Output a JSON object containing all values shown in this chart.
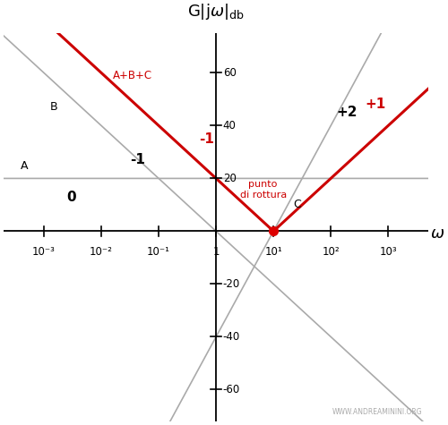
{
  "title": "G|jω|_db",
  "xlabel": "ω",
  "background_color": "#ffffff",
  "x_ticks": [
    -3,
    -2,
    -1,
    0,
    1,
    2,
    3
  ],
  "x_tick_labels": [
    "10⁻³",
    "10⁻²",
    "10⁻¹",
    "1",
    "10¹",
    "10²",
    "10³"
  ],
  "y_ticks": [
    -60,
    -40,
    -20,
    20,
    40,
    60
  ],
  "ylim": [
    -72,
    75
  ],
  "xlim": [
    -3.7,
    3.7
  ],
  "gray_color": "#aaaaaa",
  "red_color": "#cc0000",
  "text_color": "#000000",
  "watermark": "WWW.ANDREAMININI.ORG",
  "line_A_y": 20,
  "punto_x": 1,
  "punto_color": "#dd0000"
}
